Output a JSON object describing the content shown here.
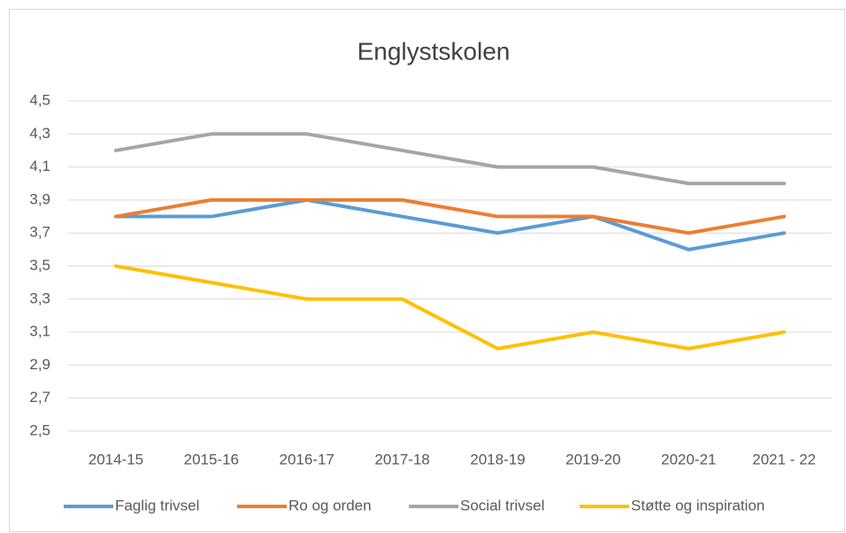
{
  "chart_data": {
    "type": "line",
    "title": "Englystskolen",
    "categories": [
      "2014-15",
      "2015-16",
      "2016-17",
      "2017-18",
      "2018-19",
      "2019-20",
      "2020-21",
      "2021 - 22"
    ],
    "series": [
      {
        "name": "Faglig trivsel",
        "color": "#5b9bd5",
        "values": [
          3.8,
          3.8,
          3.9,
          3.8,
          3.7,
          3.8,
          3.6,
          3.7
        ]
      },
      {
        "name": "Ro og orden",
        "color": "#ed7d31",
        "values": [
          3.8,
          3.9,
          3.9,
          3.9,
          3.8,
          3.8,
          3.7,
          3.8
        ]
      },
      {
        "name": "Social trivsel",
        "color": "#a5a5a5",
        "values": [
          4.2,
          4.3,
          4.3,
          4.2,
          4.1,
          4.1,
          4.0,
          4.0
        ]
      },
      {
        "name": "Støtte og inspiration",
        "color": "#ffc000",
        "values": [
          3.5,
          3.4,
          3.3,
          3.3,
          3.0,
          3.1,
          3.0,
          3.1
        ]
      }
    ],
    "ylim": [
      2.5,
      4.5
    ],
    "yticks": [
      {
        "value": 2.5,
        "label": "2,5"
      },
      {
        "value": 2.7,
        "label": "2,7"
      },
      {
        "value": 2.9,
        "label": "2,9"
      },
      {
        "value": 3.1,
        "label": "3,1"
      },
      {
        "value": 3.3,
        "label": "3,3"
      },
      {
        "value": 3.5,
        "label": "3,5"
      },
      {
        "value": 3.7,
        "label": "3,7"
      },
      {
        "value": 3.9,
        "label": "3,9"
      },
      {
        "value": 4.1,
        "label": "4,1"
      },
      {
        "value": 4.3,
        "label": "4,3"
      },
      {
        "value": 4.5,
        "label": "4,5"
      }
    ],
    "grid": true,
    "legend": "bottom"
  }
}
